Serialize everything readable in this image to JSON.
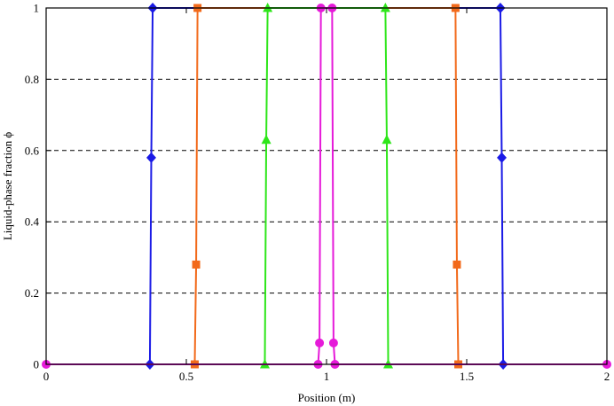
{
  "chart_data": {
    "type": "line",
    "title": "",
    "xlabel": "Position (m)",
    "ylabel": "Liquid-phase fraction ϕ",
    "xlim": [
      0,
      2
    ],
    "ylim": [
      0,
      1
    ],
    "xticks": [
      0,
      0.5,
      1,
      1.5,
      2
    ],
    "xtick_labels": [
      "0",
      "0.5",
      "1",
      "1.5",
      "2"
    ],
    "yticks": [
      0,
      0.2,
      0.4,
      0.6,
      0.8,
      1
    ],
    "ytick_labels": [
      "0",
      "0.2",
      "0.4",
      "0.6",
      "0.8",
      "1"
    ],
    "grid": "horizontal dashed",
    "legend": "none",
    "series": [
      {
        "color": "#1a1ae6",
        "marker": "diamond",
        "x": [
          0,
          0.37,
          0.375,
          0.38,
          0.5,
          1.5,
          1.62,
          1.625,
          1.63,
          2
        ],
        "y": [
          0,
          0,
          0.58,
          1,
          1,
          1,
          1,
          0.58,
          0,
          0
        ],
        "marker_points": [
          [
            0.37,
            0
          ],
          [
            0.375,
            0.58
          ],
          [
            0.38,
            1
          ],
          [
            1.62,
            1
          ],
          [
            1.625,
            0.58
          ],
          [
            1.63,
            0
          ]
        ]
      },
      {
        "color": "#f26a1b",
        "marker": "square",
        "x": [
          0,
          0.53,
          0.535,
          0.54,
          1.46,
          1.465,
          1.47,
          2
        ],
        "y": [
          0,
          0,
          0.28,
          1,
          1,
          0.28,
          0,
          0
        ],
        "marker_points": [
          [
            0.53,
            0
          ],
          [
            0.535,
            0.28
          ],
          [
            0.54,
            1
          ],
          [
            1.46,
            1
          ],
          [
            1.465,
            0.28
          ],
          [
            1.47,
            0
          ]
        ]
      },
      {
        "color": "#2ee61a",
        "marker": "triangle",
        "x": [
          0,
          0.78,
          0.785,
          0.79,
          1.21,
          1.215,
          1.22,
          2
        ],
        "y": [
          0,
          0,
          0.63,
          1,
          1,
          0.63,
          0,
          0
        ],
        "marker_points": [
          [
            0.78,
            0
          ],
          [
            0.785,
            0.63
          ],
          [
            0.79,
            1
          ],
          [
            1.21,
            1
          ],
          [
            1.215,
            0.63
          ],
          [
            1.22,
            0
          ]
        ]
      },
      {
        "color": "#e61ad9",
        "marker": "circle",
        "x": [
          0,
          0.97,
          0.975,
          0.98,
          1.02,
          1.025,
          1.03,
          2
        ],
        "y": [
          0,
          0,
          0.06,
          1,
          1,
          0.06,
          0,
          0
        ],
        "marker_points": [
          [
            0,
            0
          ],
          [
            0.97,
            0
          ],
          [
            0.975,
            0.06
          ],
          [
            0.98,
            1
          ],
          [
            1.02,
            1
          ],
          [
            1.025,
            0.06
          ],
          [
            1.03,
            0
          ],
          [
            2,
            0
          ]
        ]
      }
    ]
  }
}
